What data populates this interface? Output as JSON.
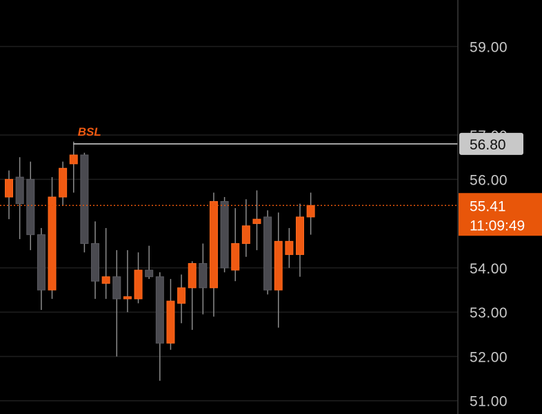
{
  "chart_data": {
    "type": "candlestick",
    "ylim": [
      50.7,
      60.05
    ],
    "yticks": [
      "59.00",
      "57.00",
      "56.00",
      "54.00",
      "53.00",
      "52.00",
      "51.00"
    ],
    "colors": {
      "background": "#000000",
      "grid": "#1f1f1f",
      "up": "#f05a12",
      "down": "#4a4a50",
      "wick": "#8c8c8c",
      "axis_border": "#3a3a3a",
      "level_line": "#d9d9d9",
      "level_tag_bg": "#c8c8c8",
      "last_price_bg": "#e8560a"
    },
    "candles": [
      {
        "o": 55.6,
        "h": 56.2,
        "l": 55.1,
        "c": 56.0
      },
      {
        "o": 56.05,
        "h": 56.5,
        "l": 54.65,
        "c": 55.45
      },
      {
        "o": 56.0,
        "h": 56.4,
        "l": 54.4,
        "c": 54.75
      },
      {
        "o": 54.75,
        "h": 54.9,
        "l": 53.05,
        "c": 53.5
      },
      {
        "o": 53.5,
        "h": 56.05,
        "l": 53.3,
        "c": 55.6
      },
      {
        "o": 55.6,
        "h": 56.4,
        "l": 55.4,
        "c": 56.25
      },
      {
        "o": 56.35,
        "h": 56.85,
        "l": 55.7,
        "c": 56.55
      },
      {
        "o": 56.55,
        "h": 56.6,
        "l": 54.35,
        "c": 54.55
      },
      {
        "o": 54.55,
        "h": 55.05,
        "l": 53.3,
        "c": 53.7
      },
      {
        "o": 53.65,
        "h": 54.9,
        "l": 53.3,
        "c": 53.8
      },
      {
        "o": 53.8,
        "h": 54.4,
        "l": 52.0,
        "c": 53.3
      },
      {
        "o": 53.3,
        "h": 54.4,
        "l": 53.0,
        "c": 53.35
      },
      {
        "o": 53.3,
        "h": 54.35,
        "l": 53.2,
        "c": 53.95
      },
      {
        "o": 53.95,
        "h": 54.5,
        "l": 53.75,
        "c": 53.8
      },
      {
        "o": 53.8,
        "h": 53.9,
        "l": 51.45,
        "c": 52.3
      },
      {
        "o": 52.3,
        "h": 53.75,
        "l": 52.15,
        "c": 53.25
      },
      {
        "o": 53.2,
        "h": 53.85,
        "l": 52.75,
        "c": 53.55
      },
      {
        "o": 53.55,
        "h": 54.15,
        "l": 52.6,
        "c": 54.1
      },
      {
        "o": 54.1,
        "h": 54.55,
        "l": 52.95,
        "c": 53.55
      },
      {
        "o": 53.55,
        "h": 55.7,
        "l": 52.9,
        "c": 55.5
      },
      {
        "o": 55.5,
        "h": 55.6,
        "l": 53.9,
        "c": 54.0
      },
      {
        "o": 53.95,
        "h": 55.35,
        "l": 53.7,
        "c": 54.55
      },
      {
        "o": 54.55,
        "h": 55.55,
        "l": 54.25,
        "c": 54.95
      },
      {
        "o": 55.0,
        "h": 55.75,
        "l": 54.4,
        "c": 55.1
      },
      {
        "o": 55.15,
        "h": 55.3,
        "l": 53.4,
        "c": 53.5
      },
      {
        "o": 53.5,
        "h": 55.25,
        "l": 52.65,
        "c": 54.6
      },
      {
        "o": 54.3,
        "h": 54.9,
        "l": 54.0,
        "c": 54.6
      },
      {
        "o": 54.3,
        "h": 55.45,
        "l": 53.8,
        "c": 55.15
      },
      {
        "o": 55.15,
        "h": 55.7,
        "l": 54.75,
        "c": 55.41
      }
    ],
    "level": {
      "value": 56.8,
      "label": "BSL",
      "tag": "56.80"
    },
    "last_price": {
      "value": 55.41,
      "tag": "55.41",
      "countdown": "11:09:49"
    }
  }
}
